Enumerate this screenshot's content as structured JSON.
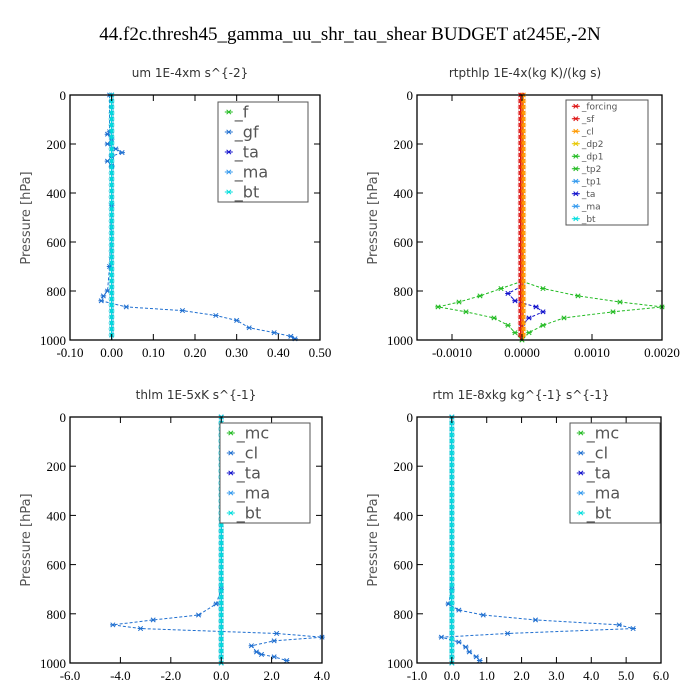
{
  "figure": {
    "title": "44.f2c.thresh45_gamma_uu_shr_tau_shear  BUDGET at245E,-2N",
    "colors": {
      "green": "#22bb22",
      "blue": "#1f6fd0",
      "navy": "#1010cc",
      "red": "#dd1111",
      "orange": "#ff9900",
      "yellow": "#e8c800",
      "cyan": "#00dddd",
      "lightblue": "#3399ee"
    }
  },
  "chart_data": [
    {
      "type": "line",
      "title": "um   1E-4xm s^{-2}",
      "ylabel": "Pressure [hPa]",
      "xlim": [
        -0.1,
        0.5
      ],
      "ylim": [
        1000,
        0
      ],
      "xticks": [
        "-0.10",
        "0.00",
        "0.10",
        "0.20",
        "0.30",
        "0.40",
        "0.50"
      ],
      "yticks": [
        "0",
        "200",
        "400",
        "600",
        "800",
        "1000"
      ],
      "legend_position": "top-right",
      "legend": [
        "_f",
        "_gf",
        "_ta",
        "_ma",
        "_bt"
      ],
      "series": [
        {
          "name": "_f",
          "color": "green",
          "points": [
            [
              0,
              0
            ],
            [
              0,
              1000
            ]
          ]
        },
        {
          "name": "_gf",
          "color": "blue",
          "points": [
            [
              -0.005,
              0
            ],
            [
              -0.005,
              150
            ],
            [
              -0.01,
              160
            ],
            [
              0.0,
              180
            ],
            [
              -0.01,
              200
            ],
            [
              0.01,
              220
            ],
            [
              0.025,
              235
            ],
            [
              0.0,
              250
            ],
            [
              -0.01,
              270
            ],
            [
              0.0,
              290
            ],
            [
              0.0,
              450
            ],
            [
              -0.005,
              700
            ],
            [
              -0.01,
              800
            ],
            [
              -0.02,
              820
            ],
            [
              -0.025,
              840
            ],
            [
              0.035,
              865
            ],
            [
              0.17,
              880
            ],
            [
              0.25,
              900
            ],
            [
              0.3,
              920
            ],
            [
              0.33,
              950
            ],
            [
              0.39,
              970
            ],
            [
              0.43,
              985
            ],
            [
              0.44,
              995
            ]
          ]
        },
        {
          "name": "_ta",
          "color": "navy",
          "points": [
            [
              0,
              0
            ],
            [
              0,
              1000
            ]
          ]
        },
        {
          "name": "_ma",
          "color": "lightblue",
          "points": [
            [
              0,
              0
            ],
            [
              0,
              1000
            ]
          ]
        },
        {
          "name": "_bt",
          "color": "cyan",
          "points": [
            [
              0,
              0
            ],
            [
              0,
              1000
            ]
          ]
        }
      ]
    },
    {
      "type": "line",
      "title": "rtpthlp   1E-4x(kg K)/(kg s)",
      "ylabel": "Pressure [hPa]",
      "xlim": [
        -0.0015,
        0.002
      ],
      "ylim": [
        1000,
        0
      ],
      "xticks": [
        "-0.0010",
        "0.0000",
        "0.0010",
        "0.0020"
      ],
      "yticks": [
        "0",
        "200",
        "400",
        "600",
        "800",
        "1000"
      ],
      "legend_position": "top-right",
      "legend": [
        "_forcing",
        "_sf",
        "_cl",
        "_dp2",
        "_dp1",
        "_tp2",
        "_tp1",
        "_ta",
        "_ma",
        "_bt"
      ],
      "series": [
        {
          "name": "_dp1",
          "color": "green",
          "points": [
            [
              0,
              760
            ],
            [
              -0.0003,
              790
            ],
            [
              -0.0006,
              820
            ],
            [
              -0.0009,
              845
            ],
            [
              -0.0012,
              865
            ],
            [
              -0.0008,
              885
            ],
            [
              -0.0004,
              910
            ],
            [
              -0.0002,
              940
            ],
            [
              -0.0001,
              970
            ],
            [
              0,
              1000
            ]
          ]
        },
        {
          "name": "_tp2",
          "color": "green",
          "points": [
            [
              0,
              760
            ],
            [
              0.0003,
              790
            ],
            [
              0.0008,
              820
            ],
            [
              0.0014,
              845
            ],
            [
              0.002,
              865
            ],
            [
              0.0013,
              885
            ],
            [
              0.0006,
              910
            ],
            [
              0.0003,
              940
            ],
            [
              0.0001,
              970
            ],
            [
              0,
              1000
            ]
          ]
        },
        {
          "name": "_ta",
          "color": "navy",
          "points": [
            [
              0,
              780
            ],
            [
              -0.0002,
              810
            ],
            [
              -0.0001,
              840
            ],
            [
              0.0002,
              865
            ],
            [
              0.0003,
              885
            ],
            [
              0.0001,
              910
            ],
            [
              0,
              940
            ]
          ]
        },
        {
          "name": "_forcing",
          "color": "red",
          "points": [
            [
              0,
              0
            ],
            [
              0,
              1000
            ]
          ]
        },
        {
          "name": "_sf",
          "color": "red",
          "points": [
            [
              -2e-05,
              0
            ],
            [
              -2e-05,
              1000
            ]
          ]
        },
        {
          "name": "_cl",
          "color": "orange",
          "points": [
            [
              2e-05,
              0
            ],
            [
              2e-05,
              1000
            ]
          ]
        }
      ]
    },
    {
      "type": "line",
      "title": "thlm   1E-5xK s^{-1}",
      "ylabel": "Pressure [hPa]",
      "xlim": [
        -6,
        4
      ],
      "ylim": [
        1000,
        0
      ],
      "xticks": [
        "-6.0",
        "-4.0",
        "-2.0",
        "0.0",
        "2.0",
        "4.0"
      ],
      "yticks": [
        "0",
        "200",
        "400",
        "600",
        "800",
        "1000"
      ],
      "legend_position": "top-right",
      "legend": [
        "_mc",
        "_cl",
        "_ta",
        "_ma",
        "_bt"
      ],
      "series": [
        {
          "name": "_mc",
          "color": "green",
          "points": [
            [
              0,
              0
            ],
            [
              0,
              1000
            ]
          ]
        },
        {
          "name": "_cl",
          "color": "blue",
          "points": [
            [
              0,
              0
            ],
            [
              0,
              700
            ],
            [
              -0.2,
              760
            ],
            [
              -0.9,
              805
            ],
            [
              -2.7,
              825
            ],
            [
              -4.3,
              845
            ],
            [
              -3.2,
              860
            ],
            [
              2.2,
              880
            ],
            [
              4.0,
              895
            ],
            [
              2.1,
              910
            ],
            [
              1.2,
              930
            ],
            [
              1.4,
              955
            ],
            [
              1.6,
              965
            ],
            [
              2.1,
              975
            ],
            [
              2.6,
              990
            ]
          ]
        },
        {
          "name": "_ta",
          "color": "navy",
          "points": [
            [
              0,
              0
            ],
            [
              0,
              1000
            ]
          ]
        },
        {
          "name": "_ma",
          "color": "lightblue",
          "points": [
            [
              0,
              0
            ],
            [
              0,
              1000
            ]
          ]
        },
        {
          "name": "_bt",
          "color": "cyan",
          "points": [
            [
              0,
              0
            ],
            [
              0,
              1000
            ]
          ]
        }
      ]
    },
    {
      "type": "line",
      "title": "rtm   1E-8xkg kg^{-1} s^{-1}",
      "ylabel": "Pressure [hPa]",
      "xlim": [
        -1,
        6
      ],
      "ylim": [
        1000,
        0
      ],
      "xticks": [
        "-1.0",
        "0.0",
        "1.0",
        "2.0",
        "3.0",
        "4.0",
        "5.0",
        "6.0"
      ],
      "yticks": [
        "0",
        "200",
        "400",
        "600",
        "800",
        "1000"
      ],
      "legend_position": "top-right",
      "legend": [
        "_mc",
        "_cl",
        "_ta",
        "_ma",
        "_bt"
      ],
      "series": [
        {
          "name": "_mc",
          "color": "green",
          "points": [
            [
              0,
              0
            ],
            [
              0,
              1000
            ]
          ]
        },
        {
          "name": "_cl",
          "color": "blue",
          "points": [
            [
              0,
              0
            ],
            [
              0,
              700
            ],
            [
              -0.1,
              760
            ],
            [
              0.2,
              785
            ],
            [
              0.9,
              805
            ],
            [
              2.4,
              825
            ],
            [
              4.8,
              845
            ],
            [
              5.2,
              860
            ],
            [
              1.6,
              880
            ],
            [
              -0.3,
              895
            ],
            [
              0.2,
              915
            ],
            [
              0.4,
              935
            ],
            [
              0.5,
              955
            ],
            [
              0.7,
              975
            ],
            [
              0.8,
              990
            ]
          ]
        },
        {
          "name": "_ta",
          "color": "navy",
          "points": [
            [
              0,
              0
            ],
            [
              0,
              1000
            ]
          ]
        },
        {
          "name": "_ma",
          "color": "lightblue",
          "points": [
            [
              0,
              0
            ],
            [
              0,
              1000
            ]
          ]
        },
        {
          "name": "_bt",
          "color": "cyan",
          "points": [
            [
              0,
              0
            ],
            [
              0,
              1000
            ]
          ]
        }
      ]
    }
  ]
}
